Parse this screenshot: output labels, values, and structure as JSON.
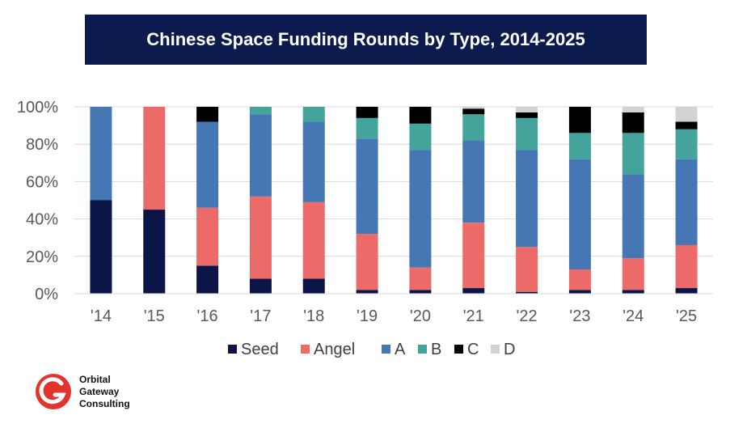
{
  "title": "Chinese Space Funding Rounds by Type, 2014-2025",
  "logo": {
    "line1": "Orbital",
    "line2": "Gateway",
    "line3": "Consulting",
    "accent": "#e2342d"
  },
  "chart_data": {
    "type": "bar",
    "stacked": true,
    "percent": true,
    "categories": [
      "'14",
      "'15",
      "'16",
      "'17",
      "'18",
      "'19",
      "'20",
      "'21",
      "'22",
      "'23",
      "'24",
      "'25"
    ],
    "series": [
      {
        "name": "Seed",
        "color": "#0b1547",
        "values": [
          50,
          45,
          15,
          8,
          8,
          2,
          2,
          3,
          1,
          2,
          2,
          3
        ]
      },
      {
        "name": "Angel",
        "color": "#ec6b68",
        "values": [
          0,
          55,
          31,
          44,
          41,
          30,
          12,
          35,
          24,
          11,
          17,
          23
        ]
      },
      {
        "name": "A",
        "color": "#4477b4",
        "values": [
          50,
          0,
          46,
          44,
          43,
          51,
          63,
          44,
          52,
          59,
          45,
          46
        ]
      },
      {
        "name": "B",
        "color": "#44a39a",
        "values": [
          0,
          0,
          0,
          4,
          8,
          11,
          14,
          14,
          17,
          14,
          22,
          16
        ]
      },
      {
        "name": "C",
        "color": "#000000",
        "values": [
          0,
          0,
          8,
          0,
          0,
          6,
          9,
          3,
          3,
          14,
          11,
          4
        ]
      },
      {
        "name": "D",
        "color": "#d3d3d3",
        "values": [
          0,
          0,
          0,
          0,
          0,
          0,
          0,
          1,
          3,
          0,
          3,
          8
        ]
      }
    ],
    "yticks": [
      "0%",
      "20%",
      "40%",
      "60%",
      "80%",
      "100%"
    ],
    "ylim": [
      0,
      100
    ],
    "grid": true,
    "legend": "bottom"
  }
}
